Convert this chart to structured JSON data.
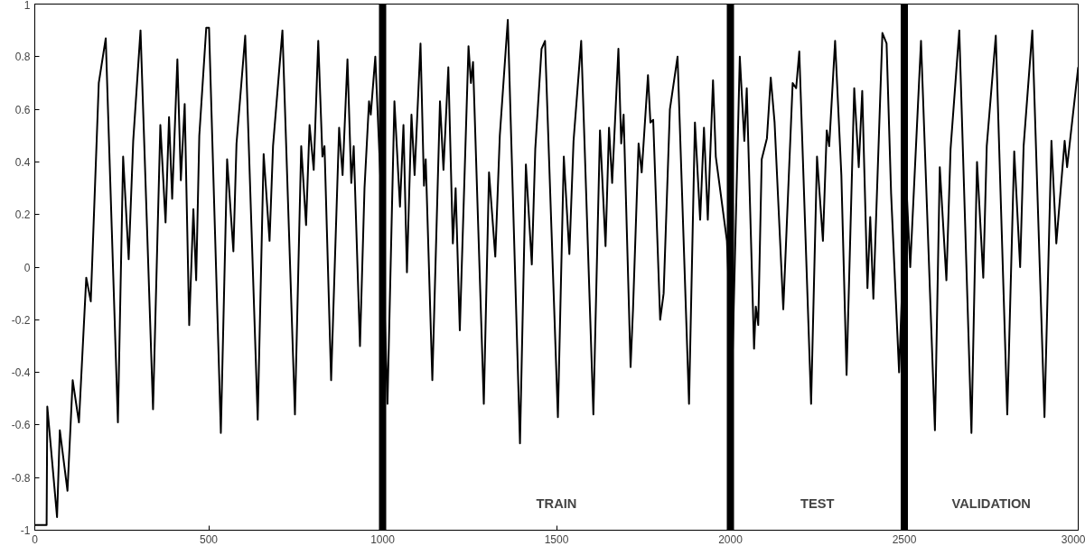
{
  "chart_data": {
    "type": "line",
    "xlim": [
      0,
      3000
    ],
    "ylim": [
      -1,
      1
    ],
    "xticks": [
      0,
      500,
      1000,
      1500,
      2000,
      2500,
      3000
    ],
    "yticks": [
      -1,
      -0.8,
      -0.6,
      -0.4,
      -0.2,
      0,
      0.2,
      0.4,
      0.6,
      0.8,
      1
    ],
    "grid": false,
    "marker": "none",
    "line_style": "solid",
    "series": [
      {
        "color": "#000000",
        "x": [
          0,
          34,
          36,
          64,
          72,
          94,
          109,
          127,
          148,
          161,
          184,
          204,
          239,
          254,
          270,
          283,
          304,
          340,
          361,
          376,
          386,
          395,
          410,
          420,
          431,
          444,
          456,
          464,
          473,
          493,
          501,
          535,
          553,
          571,
          580,
          605,
          641,
          658,
          675,
          685,
          712,
          748,
          766,
          780,
          790,
          802,
          815,
          827,
          833,
          852,
          875,
          885,
          899,
          910,
          917,
          935,
          948,
          961,
          966,
          979,
          995,
          1014,
          1034,
          1050,
          1060,
          1070,
          1083,
          1092,
          1109,
          1119,
          1124,
          1143,
          1165,
          1175,
          1189,
          1202,
          1210,
          1222,
          1247,
          1254,
          1260,
          1291,
          1306,
          1324,
          1337,
          1360,
          1395,
          1412,
          1429,
          1439,
          1457,
          1467,
          1504,
          1521,
          1537,
          1549,
          1571,
          1606,
          1625,
          1641,
          1651,
          1660,
          1678,
          1686,
          1693,
          1713,
          1720,
          1736,
          1745,
          1763,
          1770,
          1778,
          1798,
          1808,
          1826,
          1848,
          1881,
          1898,
          1913,
          1924,
          1935,
          1950,
          1958,
          1990,
          2005,
          2027,
          2040,
          2047,
          2068,
          2073,
          2080,
          2090,
          2105,
          2116,
          2127,
          2152,
          2179,
          2189,
          2198,
          2232,
          2249,
          2266,
          2277,
          2284,
          2301,
          2319,
          2334,
          2356,
          2369,
          2379,
          2394,
          2402,
          2411,
          2437,
          2449,
          2462,
          2485,
          2505,
          2517,
          2548,
          2588,
          2602,
          2621,
          2633,
          2658,
          2693,
          2709,
          2727,
          2737,
          2763,
          2796,
          2816,
          2833,
          2843,
          2868,
          2903,
          2923,
          2937,
          2961,
          2968,
          3000
        ],
        "values": [
          -0.98,
          -0.98,
          -0.53,
          -0.95,
          -0.62,
          -0.85,
          -0.43,
          -0.59,
          -0.04,
          -0.13,
          0.7,
          0.87,
          -0.59,
          0.42,
          0.03,
          0.48,
          0.9,
          -0.54,
          0.54,
          0.17,
          0.57,
          0.26,
          0.79,
          0.33,
          0.62,
          -0.22,
          0.22,
          -0.05,
          0.5,
          0.91,
          0.91,
          -0.63,
          0.41,
          0.06,
          0.47,
          0.88,
          -0.58,
          0.43,
          0.1,
          0.46,
          0.9,
          -0.56,
          0.46,
          0.16,
          0.54,
          0.37,
          0.86,
          0.42,
          0.46,
          -0.43,
          0.53,
          0.35,
          0.79,
          0.32,
          0.46,
          -0.3,
          0.3,
          0.63,
          0.58,
          0.8,
          0.3,
          -0.52,
          0.63,
          0.23,
          0.54,
          -0.02,
          0.58,
          0.35,
          0.85,
          0.31,
          0.41,
          -0.43,
          0.63,
          0.37,
          0.76,
          0.09,
          0.3,
          -0.24,
          0.84,
          0.7,
          0.78,
          -0.52,
          0.36,
          0.04,
          0.5,
          0.94,
          -0.67,
          0.39,
          0.01,
          0.45,
          0.83,
          0.86,
          -0.57,
          0.42,
          0.05,
          0.48,
          0.86,
          -0.56,
          0.52,
          0.08,
          0.53,
          0.32,
          0.83,
          0.47,
          0.58,
          -0.38,
          -0.16,
          0.47,
          0.36,
          0.73,
          0.55,
          0.56,
          -0.2,
          -0.1,
          0.6,
          0.8,
          -0.52,
          0.55,
          0.18,
          0.53,
          0.18,
          0.71,
          0.42,
          0.1,
          -0.4,
          0.8,
          0.48,
          0.68,
          -0.31,
          -0.15,
          -0.22,
          0.41,
          0.49,
          0.72,
          0.55,
          -0.16,
          0.7,
          0.68,
          0.82,
          -0.52,
          0.42,
          0.1,
          0.52,
          0.46,
          0.86,
          0.35,
          -0.41,
          0.68,
          0.38,
          0.67,
          -0.08,
          0.19,
          -0.12,
          0.89,
          0.85,
          0.28,
          -0.4,
          0.34,
          0.0,
          0.86,
          -0.62,
          0.38,
          -0.05,
          0.45,
          0.9,
          -0.63,
          0.4,
          -0.04,
          0.46,
          0.88,
          -0.56,
          0.44,
          0.0,
          0.46,
          0.9,
          -0.57,
          0.48,
          0.09,
          0.48,
          0.38,
          0.76
        ]
      }
    ],
    "ref_lines": [
      {
        "axis": "x",
        "value": 1000,
        "color": "#000000"
      },
      {
        "axis": "x",
        "value": 2000,
        "color": "#000000"
      },
      {
        "axis": "x",
        "value": 2500,
        "color": "#000000"
      }
    ],
    "annotations": [
      "TRAIN",
      "TEST",
      "VALIDATION"
    ]
  }
}
